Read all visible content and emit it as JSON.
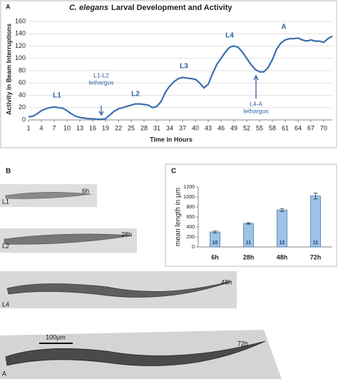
{
  "chart_data": [
    {
      "type": "line",
      "panel_label": "A",
      "title_italic": "C. elegans",
      "title": "Larval Development and Activity",
      "x_label": "Time in Hours",
      "y_label": "Activity in Beam Interruptions",
      "color": "#3a6fb0",
      "grid": true,
      "x": [
        1,
        2,
        3,
        4,
        5,
        6,
        7,
        8,
        9,
        10,
        11,
        12,
        13,
        14,
        15,
        16,
        17,
        18,
        19,
        20,
        21,
        22,
        23,
        24,
        25,
        26,
        27,
        28,
        29,
        30,
        31,
        32,
        33,
        34,
        35,
        36,
        37,
        38,
        39,
        40,
        41,
        42,
        43,
        44,
        45,
        46,
        47,
        48,
        49,
        50,
        51,
        52,
        53,
        54,
        55,
        56,
        57,
        58,
        59,
        60,
        61,
        62,
        63,
        64,
        65,
        66,
        67,
        68,
        69,
        70,
        71,
        72
      ],
      "values": [
        5,
        6,
        10,
        15,
        18,
        20,
        21,
        20,
        19,
        15,
        10,
        6,
        4,
        3,
        2,
        2,
        1,
        1,
        2,
        8,
        14,
        18,
        20,
        22,
        24,
        26,
        26,
        25,
        24,
        20,
        22,
        30,
        45,
        55,
        62,
        67,
        69,
        68,
        67,
        66,
        60,
        52,
        58,
        75,
        90,
        100,
        110,
        118,
        120,
        118,
        110,
        100,
        90,
        82,
        78,
        78,
        85,
        98,
        115,
        125,
        130,
        132,
        132,
        133,
        130,
        128,
        130,
        128,
        128,
        126,
        132,
        136
      ],
      "xlim": [
        1,
        72
      ],
      "xticks": [
        1,
        4,
        7,
        10,
        13,
        16,
        19,
        22,
        25,
        28,
        31,
        34,
        37,
        40,
        43,
        46,
        49,
        52,
        55,
        58,
        61,
        64,
        67,
        70
      ],
      "ylim": [
        0,
        160
      ],
      "yticks": [
        0,
        20,
        40,
        60,
        80,
        100,
        120,
        140,
        160
      ],
      "annotations": [
        "L1",
        "L1-L2",
        "lethargus",
        "L2",
        "L3",
        "L4",
        "L4-A",
        "lethargus",
        "A"
      ]
    },
    {
      "type": "bar",
      "panel_label": "C",
      "y_label": "mean length in µm",
      "color": "#9dc3e6",
      "categories": [
        "6h",
        "28h",
        "48h",
        "72h"
      ],
      "values": [
        300,
        470,
        740,
        1020
      ],
      "errors": [
        20,
        15,
        30,
        60
      ],
      "bar_labels": [
        10,
        11,
        12,
        11
      ],
      "ylim": [
        0,
        1200
      ],
      "yticks": [
        0,
        200,
        400,
        600,
        800,
        1000,
        1200
      ]
    }
  ],
  "panel_b": {
    "label": "B",
    "scale_bar": "100µm",
    "images": [
      {
        "time": "6h",
        "stage": "L1"
      },
      {
        "time": "28h",
        "stage": "L2"
      },
      {
        "time": "48h",
        "stage": "L4"
      },
      {
        "time": "72h",
        "stage": "A"
      }
    ]
  }
}
